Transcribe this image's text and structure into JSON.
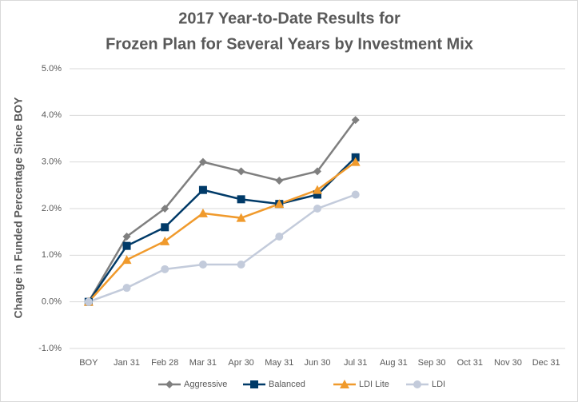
{
  "chart_data": {
    "type": "line",
    "title": [
      "2017 Year-to-Date Results for",
      "Frozen Plan for Several Years by Investment Mix"
    ],
    "y_label": "Change in Funded Percentage Since BOY",
    "categories": [
      "BOY",
      "Jan 31",
      "Feb 28",
      "Mar 31",
      "Apr 30",
      "May 31",
      "Jun 30",
      "Jul 31",
      "Aug 31",
      "Sep 30",
      "Oct 31",
      "Nov 30",
      "Dec 31"
    ],
    "series": [
      {
        "name": "Aggressive",
        "color": "#7f7f7f",
        "marker": "diamond",
        "values": [
          0,
          1.4,
          2.0,
          3.0,
          2.8,
          2.6,
          2.8,
          3.9,
          null,
          null,
          null,
          null,
          null
        ]
      },
      {
        "name": "Balanced",
        "color": "#003a68",
        "marker": "square",
        "values": [
          0,
          1.2,
          1.6,
          2.4,
          2.2,
          2.1,
          2.3,
          3.1,
          null,
          null,
          null,
          null,
          null
        ]
      },
      {
        "name": "LDI Lite",
        "color": "#f09a2c",
        "marker": "triangle",
        "values": [
          0,
          0.9,
          1.3,
          1.9,
          1.8,
          2.1,
          2.4,
          3.0,
          null,
          null,
          null,
          null,
          null
        ]
      },
      {
        "name": "LDI",
        "color": "#c3cbdb",
        "marker": "circle",
        "values": [
          0,
          0.3,
          0.7,
          0.8,
          0.8,
          1.4,
          2.0,
          2.3,
          null,
          null,
          null,
          null,
          null
        ]
      }
    ],
    "ylim": [
      -1,
      5
    ],
    "yticks": [
      {
        "value": -1,
        "label": "-1.0%"
      },
      {
        "value": 0,
        "label": "0.0%"
      },
      {
        "value": 1,
        "label": "1.0%"
      },
      {
        "value": 2,
        "label": "2.0%"
      },
      {
        "value": 3,
        "label": "3.0%"
      },
      {
        "value": 4,
        "label": "4.0%"
      },
      {
        "value": 5,
        "label": "5.0%"
      }
    ],
    "grid": true,
    "legend": "bottom"
  }
}
